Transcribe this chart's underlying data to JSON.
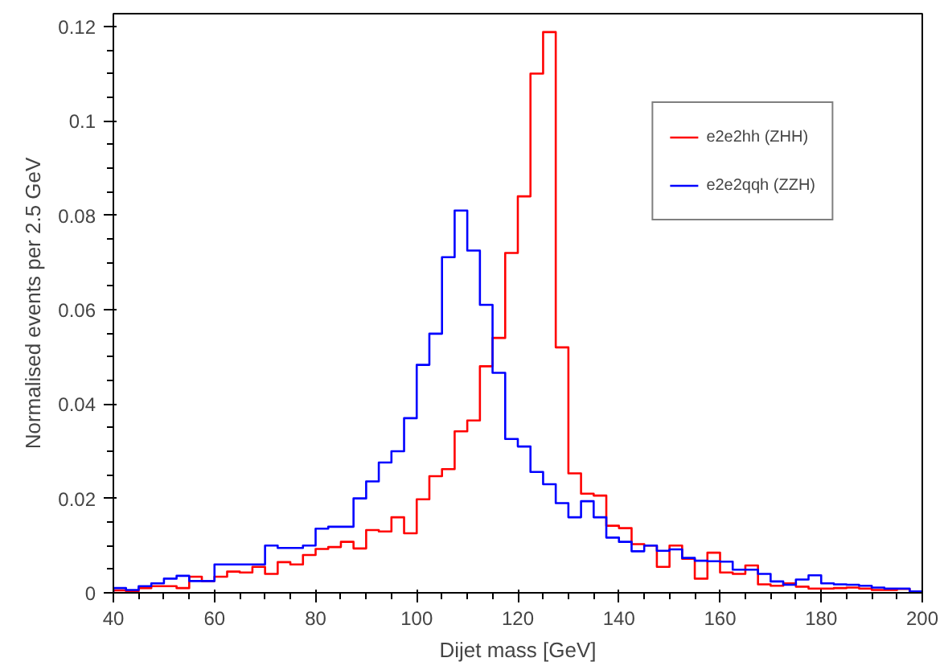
{
  "chart_data": {
    "type": "histogram",
    "xlabel": "Dijet mass [GeV]",
    "ylabel": "Normalised events per 2.5 GeV",
    "bins": [
      40,
      42.5,
      45,
      47.5,
      50,
      52.5,
      55,
      57.5,
      60,
      62.5,
      65,
      67.5,
      70,
      72.5,
      75,
      77.5,
      80,
      82.5,
      85,
      87.5,
      90,
      92.5,
      95,
      97.5,
      100,
      102.5,
      105,
      107.5,
      110,
      112.5,
      115,
      117.5,
      120,
      122.5,
      125,
      127.5,
      130,
      132.5,
      135,
      137.5,
      140,
      142.5,
      145,
      147.5,
      150,
      152.5,
      155,
      157.5,
      160,
      162.5,
      165,
      167.5,
      170,
      172.5,
      175,
      177.5,
      180,
      182.5,
      185,
      187.5,
      190,
      192.5,
      195,
      197.5,
      200
    ],
    "series": [
      {
        "name": "e2e2hh (ZHH)",
        "color": "#ff0000",
        "values": [
          0.0005,
          0.0003,
          0.001,
          0.0014,
          0.0014,
          0.001,
          0.0034,
          0.0025,
          0.0034,
          0.0045,
          0.0043,
          0.0055,
          0.004,
          0.0065,
          0.006,
          0.008,
          0.0093,
          0.0097,
          0.0108,
          0.0094,
          0.0133,
          0.013,
          0.016,
          0.0126,
          0.0198,
          0.0247,
          0.0262,
          0.0342,
          0.0365,
          0.048,
          0.054,
          0.072,
          0.084,
          0.11,
          0.1188,
          0.052,
          0.0253,
          0.021,
          0.0206,
          0.0142,
          0.0137,
          0.0103,
          0.01,
          0.0055,
          0.01,
          0.0072,
          0.003,
          0.0085,
          0.0043,
          0.004,
          0.0058,
          0.0018,
          0.0015,
          0.002,
          0.0013,
          0.0009,
          0.0009,
          0.001,
          0.0011,
          0.0009,
          0.0006,
          0.0006,
          0.0008,
          0.0003
        ]
      },
      {
        "name": "e2e2qqh (ZZH)",
        "color": "#0000ff",
        "values": [
          0.001,
          0.0006,
          0.0014,
          0.002,
          0.003,
          0.0036,
          0.0025,
          0.0025,
          0.006,
          0.006,
          0.006,
          0.006,
          0.01,
          0.0095,
          0.0095,
          0.01,
          0.0136,
          0.014,
          0.014,
          0.02,
          0.0236,
          0.0276,
          0.03,
          0.037,
          0.0483,
          0.0549,
          0.0711,
          0.081,
          0.0725,
          0.061,
          0.0466,
          0.0326,
          0.031,
          0.0256,
          0.023,
          0.019,
          0.016,
          0.0194,
          0.016,
          0.0117,
          0.0108,
          0.0088,
          0.01,
          0.0089,
          0.0092,
          0.0074,
          0.0068,
          0.0067,
          0.0066,
          0.0049,
          0.0049,
          0.004,
          0.0024,
          0.0017,
          0.0028,
          0.0037,
          0.002,
          0.0018,
          0.0017,
          0.0015,
          0.0011,
          0.0009,
          0.0009,
          0.0003
        ]
      }
    ],
    "xlim": [
      40,
      200
    ],
    "ylim": [
      0,
      0.1227
    ],
    "xticks": [
      40,
      60,
      80,
      100,
      120,
      140,
      160,
      180,
      200
    ],
    "yticks": [
      0,
      0.02,
      0.04,
      0.06,
      0.08,
      0.1,
      0.12
    ],
    "grid": false,
    "legend": "top right"
  }
}
